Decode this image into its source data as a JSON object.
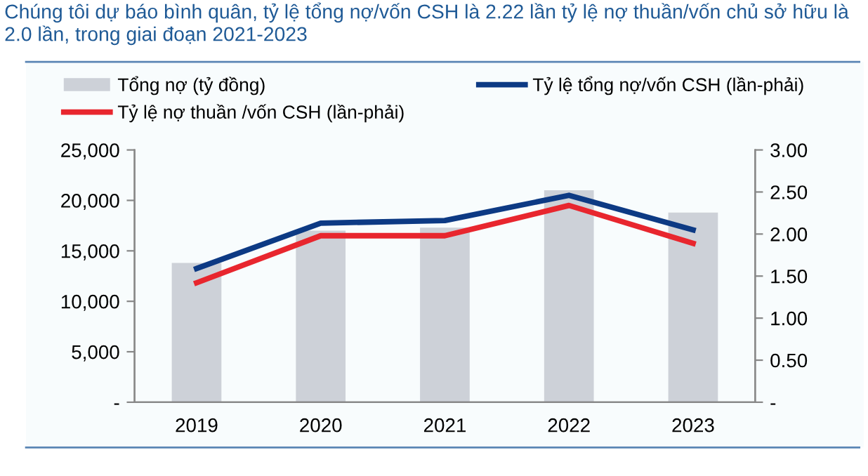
{
  "chart_data": {
    "type": "bar",
    "title": "Chúng tôi dự báo bình quân, tỷ lệ tổng nợ/vốn CSH là 2.22 lần tỷ lệ nợ thuần/vốn chủ sở hữu là 2.0 lần, trong giai đoạn 2021-2023",
    "categories": [
      "2019",
      "2020",
      "2021",
      "2022",
      "2023"
    ],
    "series": [
      {
        "name": "Tổng nợ (tỷ đồng)",
        "color": "#cdd1d8",
        "values": [
          13800,
          17000,
          17300,
          21000,
          18800
        ]
      },
      {
        "name": "Tỷ lệ tổng nợ/vốn CSH (lần-phải)",
        "type": "line",
        "axis": "y2",
        "color": "#0d3a84",
        "values": [
          1.59,
          2.13,
          2.16,
          2.46,
          2.05
        ]
      },
      {
        "name": "Tỷ lệ nợ thuần /vốn CSH (lần-phải)",
        "type": "line",
        "axis": "y2",
        "color": "#e8262e",
        "values": [
          1.42,
          1.98,
          1.98,
          2.34,
          1.89
        ]
      }
    ],
    "ylim": [
      0,
      25000
    ],
    "yticks": [
      {
        "value": 0,
        "label": "-"
      },
      {
        "value": 5000,
        "label": "5,000"
      },
      {
        "value": 10000,
        "label": "10,000"
      },
      {
        "value": 15000,
        "label": "15,000"
      },
      {
        "value": 20000,
        "label": "20,000"
      },
      {
        "value": 25000,
        "label": "25,000"
      }
    ],
    "y2lim": [
      0,
      3
    ],
    "y2ticks": [
      {
        "value": 0,
        "label": "-"
      },
      {
        "value": 0.5,
        "label": "0.50"
      },
      {
        "value": 1,
        "label": "1.00"
      },
      {
        "value": 1.5,
        "label": "1.50"
      },
      {
        "value": 2,
        "label": "2.00"
      },
      {
        "value": 2.5,
        "label": "2.50"
      },
      {
        "value": 3,
        "label": "3.00"
      }
    ],
    "grid": false,
    "legend": "top"
  }
}
